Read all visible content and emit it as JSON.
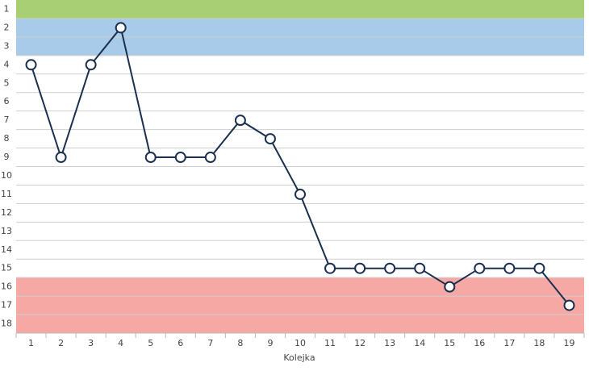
{
  "chart_data": {
    "type": "line",
    "x_label": "Kolejka",
    "categories": [
      "1",
      "2",
      "3",
      "4",
      "5",
      "6",
      "7",
      "8",
      "9",
      "10",
      "11",
      "12",
      "13",
      "14",
      "15",
      "16",
      "17",
      "18",
      "19"
    ],
    "values": [
      4,
      9,
      4,
      2,
      9,
      9,
      9,
      7,
      8,
      11,
      15,
      15,
      15,
      15,
      16,
      15,
      15,
      15,
      17
    ],
    "color": "#1b2f4f",
    "ylim": [
      18.5,
      0.5
    ],
    "yticks": [
      1,
      2,
      3,
      4,
      5,
      6,
      7,
      8,
      9,
      10,
      11,
      12,
      13,
      14,
      15,
      16,
      17,
      18
    ],
    "zones": [
      {
        "from": 1,
        "to": 1,
        "color": "#a9cf74"
      },
      {
        "from": 2,
        "to": 3,
        "color": "#a7cbe8"
      },
      {
        "from": 16,
        "to": 18,
        "color": "#f5a8a4"
      }
    ],
    "grid": true
  }
}
